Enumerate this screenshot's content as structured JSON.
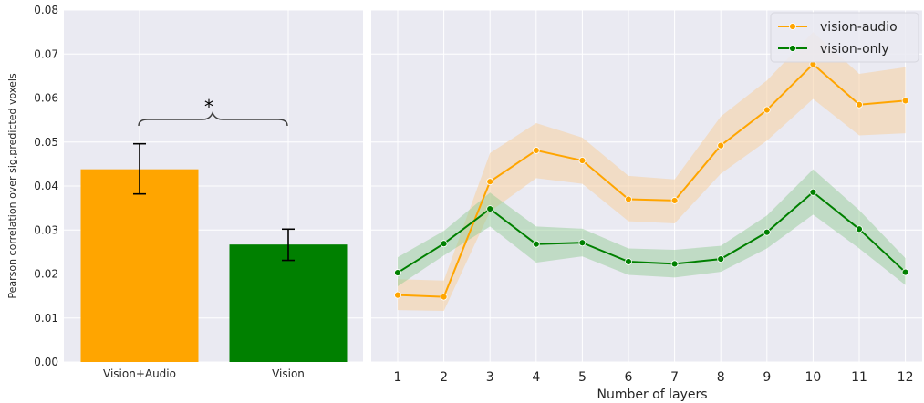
{
  "colors": {
    "panel_bg": "#eaeaf2",
    "grid": "#ffffff",
    "orange": "#ffa500",
    "green": "#008000",
    "band_orange": "#f5cfa0",
    "band_green": "#8fc98f"
  },
  "chart_data": [
    {
      "type": "bar",
      "categories": [
        "Vision+Audio",
        "Vision"
      ],
      "values": [
        0.0438,
        0.0267
      ],
      "error": [
        [
          0.0382,
          0.0496
        ],
        [
          0.0231,
          0.0302
        ]
      ],
      "bar_colors": [
        "#ffa500",
        "#008000"
      ],
      "ylabel": "Pearson correlation over sig.predicted voxels",
      "ylim": [
        0,
        0.08
      ],
      "yticks": [
        "0.00",
        "0.01",
        "0.02",
        "0.03",
        "0.04",
        "0.05",
        "0.06",
        "0.07",
        "0.08"
      ],
      "significance": "*",
      "grid": true
    },
    {
      "type": "line",
      "x": [
        1,
        2,
        3,
        4,
        5,
        6,
        7,
        8,
        9,
        10,
        11,
        12
      ],
      "xlabel": "Number of layers",
      "ylim": [
        0,
        0.08
      ],
      "grid": true,
      "legend_position": "top-right",
      "series": [
        {
          "name": "vision-audio",
          "color": "#ffa500",
          "values": [
            0.0152,
            0.0148,
            0.041,
            0.0481,
            0.0458,
            0.037,
            0.0367,
            0.0492,
            0.0573,
            0.0677,
            0.0585,
            0.0594
          ],
          "lower": [
            0.0118,
            0.0116,
            0.0342,
            0.0418,
            0.0405,
            0.032,
            0.0315,
            0.0428,
            0.0503,
            0.0598,
            0.0515,
            0.052
          ],
          "upper": [
            0.0188,
            0.0185,
            0.0475,
            0.0543,
            0.051,
            0.0423,
            0.0415,
            0.0558,
            0.064,
            0.075,
            0.0655,
            0.067
          ]
        },
        {
          "name": "vision-only",
          "color": "#008000",
          "values": [
            0.0203,
            0.0269,
            0.0348,
            0.0268,
            0.0271,
            0.0228,
            0.0223,
            0.0234,
            0.0295,
            0.0386,
            0.0302,
            0.0204
          ],
          "lower": [
            0.0172,
            0.0242,
            0.0308,
            0.0226,
            0.024,
            0.0198,
            0.0192,
            0.0205,
            0.0258,
            0.0335,
            0.0258,
            0.0175
          ],
          "upper": [
            0.0238,
            0.0298,
            0.0385,
            0.0308,
            0.0303,
            0.0258,
            0.0255,
            0.0264,
            0.0333,
            0.0438,
            0.0345,
            0.0236
          ]
        }
      ]
    }
  ]
}
